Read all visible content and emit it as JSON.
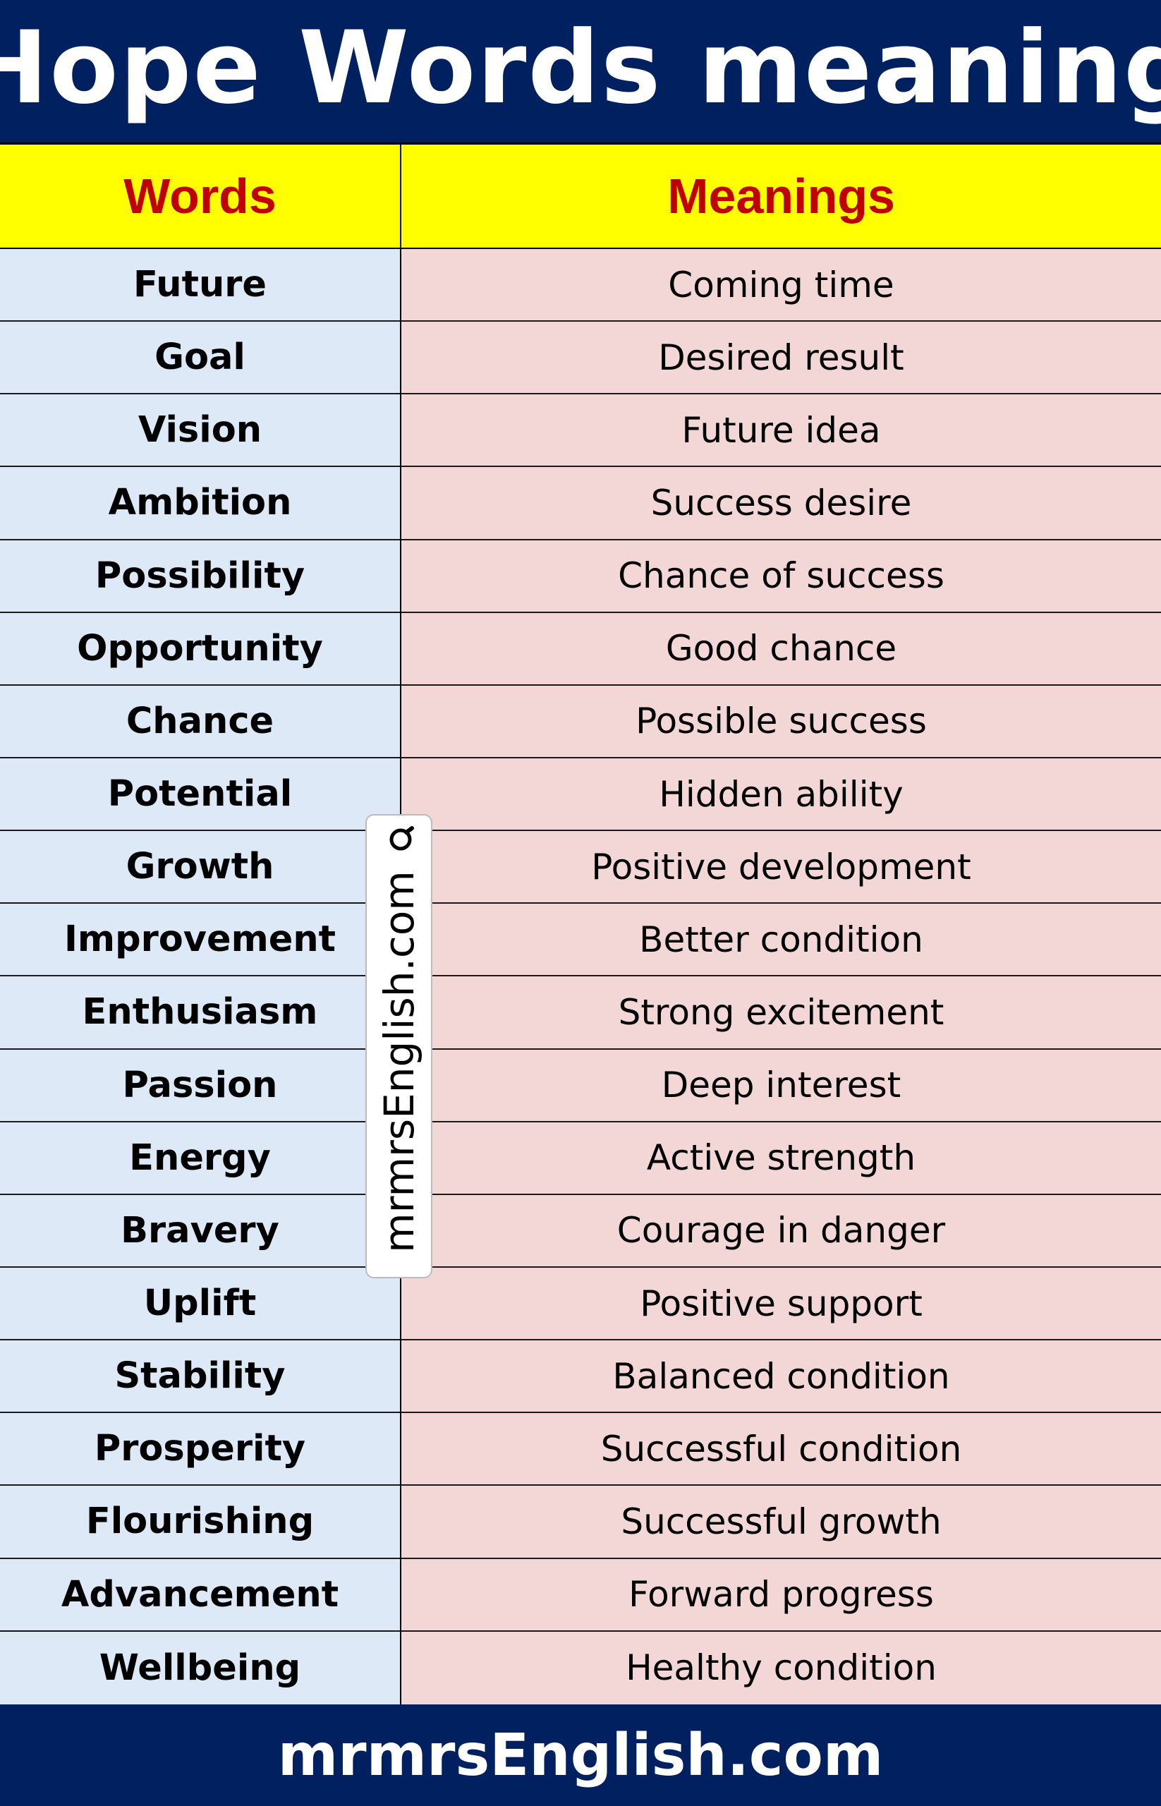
{
  "title": "Hope Words meaning",
  "table": {
    "headers": {
      "words": "Words",
      "meanings": "Meanings"
    },
    "rows": [
      {
        "word": "Future",
        "meaning": "Coming time"
      },
      {
        "word": "Goal",
        "meaning": "Desired result"
      },
      {
        "word": "Vision",
        "meaning": "Future idea"
      },
      {
        "word": "Ambition",
        "meaning": "Success desire"
      },
      {
        "word": "Possibility",
        "meaning": "Chance of success"
      },
      {
        "word": "Opportunity",
        "meaning": "Good chance"
      },
      {
        "word": "Chance",
        "meaning": "Possible success"
      },
      {
        "word": "Potential",
        "meaning": "Hidden ability"
      },
      {
        "word": "Growth",
        "meaning": "Positive development"
      },
      {
        "word": "Improvement",
        "meaning": "Better condition"
      },
      {
        "word": "Enthusiasm",
        "meaning": "Strong excitement"
      },
      {
        "word": "Passion",
        "meaning": "Deep interest"
      },
      {
        "word": "Energy",
        "meaning": "Active strength"
      },
      {
        "word": "Bravery",
        "meaning": "Courage in danger"
      },
      {
        "word": "Uplift",
        "meaning": "Positive support"
      },
      {
        "word": "Stability",
        "meaning": "Balanced condition"
      },
      {
        "word": "Prosperity",
        "meaning": "Successful condition"
      },
      {
        "word": "Flourishing",
        "meaning": "Successful growth"
      },
      {
        "word": "Advancement",
        "meaning": "Forward progress"
      },
      {
        "word": "Wellbeing",
        "meaning": "Healthy condition"
      }
    ]
  },
  "watermark": {
    "text": "mrmrsEnglish.com",
    "icon": "magnifier-icon"
  },
  "footer": {
    "text": "mrmrsEnglish.com"
  },
  "colors": {
    "navy": "#002060",
    "header_yellow": "#ffff00",
    "header_text_red": "#c00000",
    "word_column_blue": "#dde9f6",
    "meaning_column_pink": "#f3d6d6"
  }
}
